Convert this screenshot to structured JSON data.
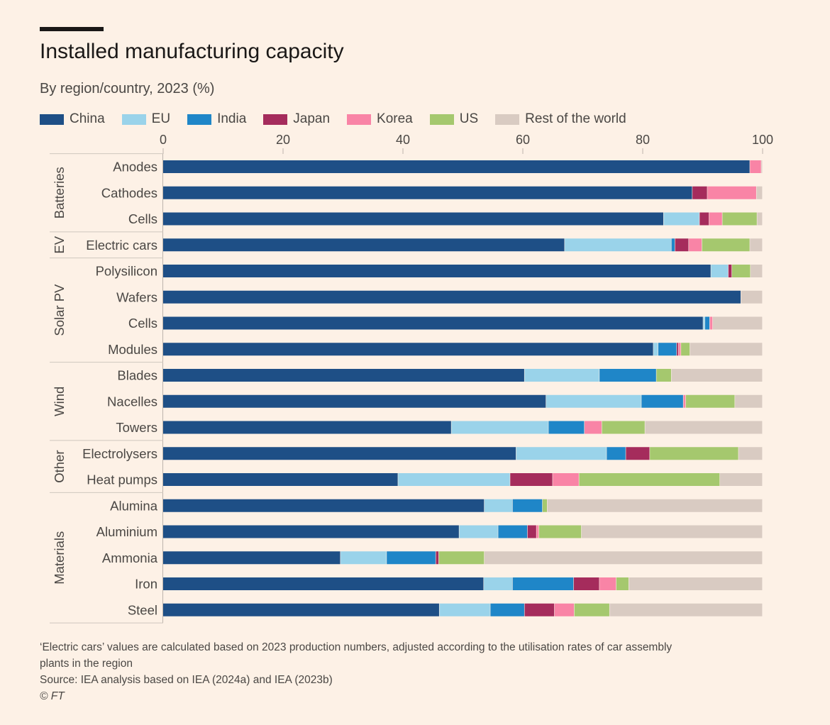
{
  "header": {
    "title": "Installed manufacturing capacity",
    "subtitle": "By region/country, 2023 (%)"
  },
  "legend": [
    {
      "name": "China",
      "color": "#1e4f86"
    },
    {
      "name": "EU",
      "color": "#9ad3ea"
    },
    {
      "name": "India",
      "color": "#1f86c8"
    },
    {
      "name": "Japan",
      "color": "#a52c5c"
    },
    {
      "name": "Korea",
      "color": "#f984a6"
    },
    {
      "name": "US",
      "color": "#a5c86e"
    },
    {
      "name": "Rest of the world",
      "color": "#d9cbc2"
    }
  ],
  "footer": {
    "note_line1": "‘Electric cars’ values are calculated based on 2023 production numbers, adjusted according to the utilisation rates of car assembly",
    "note_line2": "plants in the region",
    "source": "Source: IEA analysis based on IEA (2024a) and IEA (2023b)",
    "copyright": "© FT"
  },
  "chart_data": {
    "type": "bar",
    "orientation": "horizontal",
    "stacked": true,
    "xlim": [
      0,
      100
    ],
    "xticks": [
      0,
      20,
      40,
      60,
      80,
      100
    ],
    "xaxis_position": "top",
    "legend_position": "top",
    "grid": false,
    "groups": [
      {
        "name": "Batteries",
        "categories": [
          "Anodes",
          "Cathodes",
          "Cells"
        ]
      },
      {
        "name": "EV",
        "categories": [
          "Electric cars"
        ]
      },
      {
        "name": "Solar PV",
        "categories": [
          "Polysilicon",
          "Wafers",
          "Cells",
          "Modules"
        ]
      },
      {
        "name": "Wind",
        "categories": [
          "Blades",
          "Nacelles",
          "Towers"
        ]
      },
      {
        "name": "Other",
        "categories": [
          "Electrolysers",
          "Heat pumps"
        ]
      },
      {
        "name": "Materials",
        "categories": [
          "Alumina",
          "Aluminium",
          "Ammonia",
          "Iron",
          "Steel"
        ]
      }
    ],
    "categories": [
      "Anodes",
      "Cathodes",
      "Cells",
      "Electric cars",
      "Polysilicon",
      "Wafers",
      "Cells",
      "Modules",
      "Blades",
      "Nacelles",
      "Towers",
      "Electrolysers",
      "Heat pumps",
      "Alumina",
      "Aluminium",
      "Ammonia",
      "Iron",
      "Steel"
    ],
    "series": [
      {
        "name": "China",
        "color": "#1e4f86",
        "values": [
          97.9,
          88.3,
          83.5,
          67.0,
          91.4,
          96.4,
          90.1,
          81.8,
          60.3,
          63.9,
          48.1,
          58.9,
          39.2,
          53.6,
          49.4,
          29.6,
          53.5,
          46.1
        ]
      },
      {
        "name": "EU",
        "color": "#9ad3ea",
        "values": [
          0,
          0,
          6.0,
          17.8,
          2.9,
          0,
          0.3,
          0.8,
          12.5,
          15.9,
          16.2,
          15.1,
          18.7,
          4.7,
          6.5,
          7.7,
          4.8,
          8.5
        ]
      },
      {
        "name": "India",
        "color": "#1f86c8",
        "values": [
          0,
          0,
          0,
          0.6,
          0,
          0,
          0.8,
          3.1,
          9.5,
          7.0,
          6.0,
          3.2,
          0,
          5.0,
          4.9,
          8.2,
          10.2,
          5.7
        ]
      },
      {
        "name": "Japan",
        "color": "#a52c5c",
        "values": [
          0,
          2.5,
          1.6,
          2.3,
          0.6,
          0,
          0,
          0.3,
          0,
          0,
          0,
          4.0,
          7.1,
          0,
          1.5,
          0.5,
          4.3,
          5.0
        ]
      },
      {
        "name": "Korea",
        "color": "#f984a6",
        "values": [
          1.9,
          8.2,
          2.2,
          2.2,
          0,
          0,
          0.5,
          0.4,
          0,
          0.4,
          2.9,
          0,
          4.4,
          0,
          0.4,
          0,
          2.8,
          3.3
        ]
      },
      {
        "name": "US",
        "color": "#a5c86e",
        "values": [
          0,
          0,
          5.8,
          8.0,
          3.1,
          0,
          0,
          1.5,
          2.5,
          8.2,
          7.2,
          14.8,
          23.5,
          0.8,
          7.1,
          7.6,
          2.1,
          5.9
        ]
      },
      {
        "name": "Rest of the world",
        "color": "#d9cbc2",
        "values": [
          0.2,
          1.0,
          0.9,
          2.1,
          2.0,
          3.6,
          8.3,
          12.1,
          15.2,
          4.6,
          19.6,
          4.0,
          7.1,
          35.9,
          30.2,
          46.4,
          22.3,
          25.5
        ]
      }
    ]
  }
}
